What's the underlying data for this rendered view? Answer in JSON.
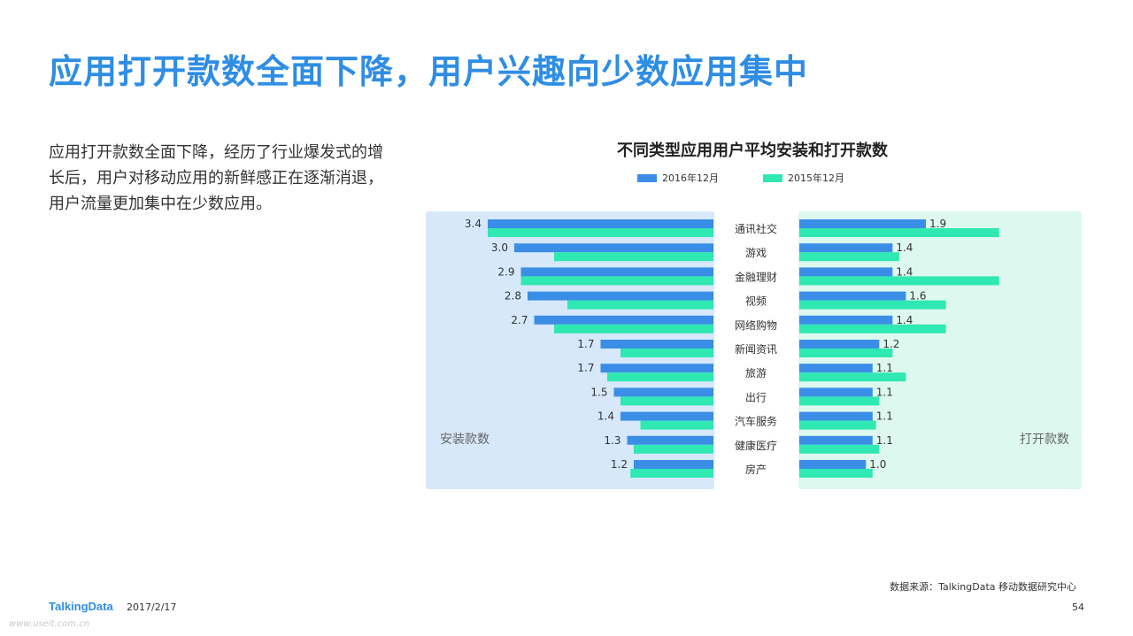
{
  "page": {
    "title": "应用打开款数全面下降，用户兴趣向少数应用集中",
    "intro": "应用打开款数全面下降，经历了行业爆发式的增长后，用户对移动应用的新鲜感正在逐渐消退，用户流量更加集中在少数应用。",
    "source": "数据来源：TalkingData 移动数据研究中心",
    "logo": "TalkingData",
    "date": "2017/2/17",
    "page_number": "54",
    "watermark": "www.useit.com.cn"
  },
  "colors": {
    "title": "#2f8de4",
    "series_2016": "#3a8ee6",
    "series_2015": "#2fe8b2",
    "panel_left": "#d6e8fa",
    "panel_right": "#ddf8ee"
  },
  "chart_data": {
    "type": "bar",
    "title": "不同类型应用用户平均安装和打开款数",
    "orientation": "horizontal-butterfly",
    "categories": [
      "通讯社交",
      "游戏",
      "金融理财",
      "视频",
      "网络购物",
      "新闻资讯",
      "旅游",
      "出行",
      "汽车服务",
      "健康医疗",
      "房产"
    ],
    "panels": [
      {
        "label": "安装款数",
        "side": "left",
        "series": [
          {
            "name": "2016年12月",
            "values": [
              3.4,
              3.0,
              2.9,
              2.8,
              2.7,
              1.7,
              1.7,
              1.5,
              1.4,
              1.3,
              1.2
            ],
            "labeled": true
          },
          {
            "name": "2015年12月",
            "values": [
              3.4,
              2.4,
              2.9,
              2.2,
              2.4,
              1.4,
              1.6,
              1.4,
              1.1,
              1.2,
              1.25
            ],
            "labeled": false
          }
        ],
        "xlim": [
          0,
          3.55
        ]
      },
      {
        "label": "打开款数",
        "side": "right",
        "series": [
          {
            "name": "2016年12月",
            "values": [
              1.9,
              1.4,
              1.4,
              1.6,
              1.4,
              1.2,
              1.1,
              1.1,
              1.1,
              1.1,
              1.0
            ],
            "labeled": true
          },
          {
            "name": "2015年12月",
            "values": [
              3.0,
              1.5,
              3.0,
              2.2,
              2.2,
              1.4,
              1.6,
              1.2,
              1.15,
              1.2,
              1.1
            ],
            "labeled": false
          }
        ],
        "xmax_scale": 7.5
      }
    ],
    "legend": [
      "2016年12月",
      "2015年12月"
    ],
    "legend_position": "top"
  }
}
